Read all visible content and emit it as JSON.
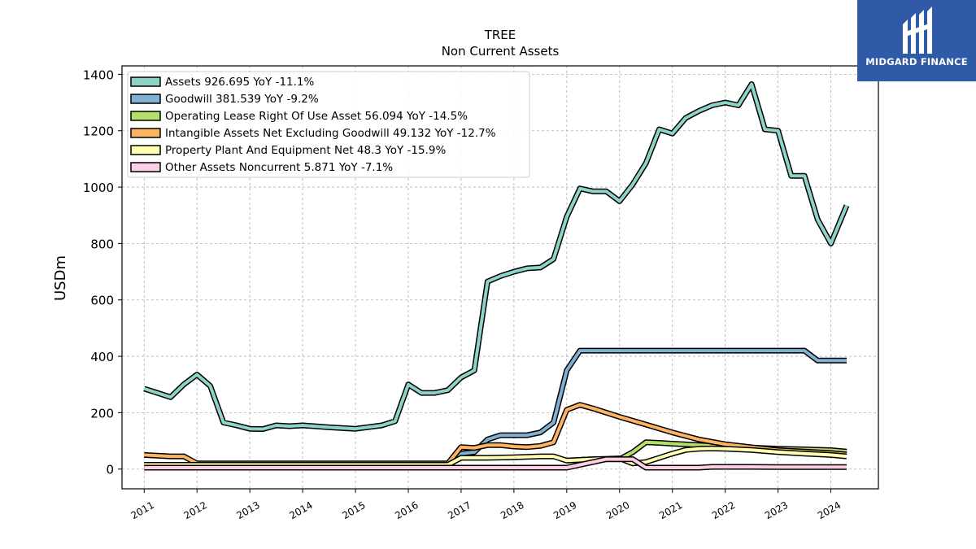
{
  "chart_data": {
    "type": "line",
    "title": "TREE",
    "subtitle": "Non Current  Assets",
    "xlabel": "",
    "ylabel": "USDm",
    "xlim": [
      2010.58,
      2024.9
    ],
    "ylim": [
      -70,
      1430
    ],
    "x_ticks": [
      "2011",
      "2012",
      "2013",
      "2014",
      "2015",
      "2016",
      "2017",
      "2018",
      "2019",
      "2020",
      "2021",
      "2022",
      "2023",
      "2024"
    ],
    "y_ticks": [
      0,
      200,
      400,
      600,
      800,
      1000,
      1200,
      1400
    ],
    "grid": true,
    "legend_position": "top-left",
    "series": [
      {
        "name": "Assets  926.695 YoY -11.1%",
        "color": "#8dd3c7",
        "points": [
          [
            2011.0,
            285
          ],
          [
            2011.25,
            270
          ],
          [
            2011.5,
            255
          ],
          [
            2011.75,
            300
          ],
          [
            2012.0,
            335
          ],
          [
            2012.25,
            295
          ],
          [
            2012.5,
            165
          ],
          [
            2012.75,
            155
          ],
          [
            2013.0,
            143
          ],
          [
            2013.25,
            142
          ],
          [
            2013.5,
            155
          ],
          [
            2013.75,
            152
          ],
          [
            2014.0,
            155
          ],
          [
            2014.5,
            148
          ],
          [
            2015.0,
            143
          ],
          [
            2015.5,
            155
          ],
          [
            2015.75,
            170
          ],
          [
            2016.0,
            300
          ],
          [
            2016.25,
            270
          ],
          [
            2016.5,
            270
          ],
          [
            2016.75,
            280
          ],
          [
            2017.0,
            325
          ],
          [
            2017.25,
            350
          ],
          [
            2017.5,
            665
          ],
          [
            2017.75,
            685
          ],
          [
            2018.0,
            700
          ],
          [
            2018.25,
            712
          ],
          [
            2018.5,
            715
          ],
          [
            2018.75,
            745
          ],
          [
            2019.0,
            895
          ],
          [
            2019.25,
            995
          ],
          [
            2019.5,
            985
          ],
          [
            2019.75,
            985
          ],
          [
            2020.0,
            950
          ],
          [
            2020.25,
            1010
          ],
          [
            2020.5,
            1085
          ],
          [
            2020.75,
            1205
          ],
          [
            2021.0,
            1190
          ],
          [
            2021.25,
            1245
          ],
          [
            2021.5,
            1270
          ],
          [
            2021.75,
            1290
          ],
          [
            2022.0,
            1300
          ],
          [
            2022.25,
            1290
          ],
          [
            2022.5,
            1365
          ],
          [
            2022.75,
            1205
          ],
          [
            2023.0,
            1200
          ],
          [
            2023.25,
            1040
          ],
          [
            2023.5,
            1040
          ],
          [
            2023.75,
            885
          ],
          [
            2024.0,
            800
          ],
          [
            2024.3,
            935
          ]
        ]
      },
      {
        "name": "Goodwill  381.539 YoY -9.2%",
        "color": "#80b1d3",
        "points": [
          [
            2011.0,
            15
          ],
          [
            2011.75,
            15
          ],
          [
            2012.0,
            15
          ],
          [
            2016.75,
            15
          ],
          [
            2017.0,
            55
          ],
          [
            2017.25,
            60
          ],
          [
            2017.5,
            105
          ],
          [
            2017.75,
            120
          ],
          [
            2018.0,
            120
          ],
          [
            2018.25,
            120
          ],
          [
            2018.5,
            130
          ],
          [
            2018.75,
            165
          ],
          [
            2019.0,
            350
          ],
          [
            2019.25,
            420
          ],
          [
            2019.5,
            420
          ],
          [
            2023.5,
            420
          ],
          [
            2023.75,
            385
          ],
          [
            2024.3,
            385
          ]
        ]
      },
      {
        "name": "Operating Lease Right Of Use Asset  56.094 YoY -14.5%",
        "color": "#b3de69",
        "points": [
          [
            2019.0,
            30
          ],
          [
            2019.5,
            35
          ],
          [
            2020.0,
            35
          ],
          [
            2020.25,
            60
          ],
          [
            2020.5,
            95
          ],
          [
            2020.75,
            93
          ],
          [
            2021.0,
            90
          ],
          [
            2021.5,
            85
          ],
          [
            2022.0,
            80
          ],
          [
            2022.5,
            76
          ],
          [
            2023.0,
            72
          ],
          [
            2023.5,
            70
          ],
          [
            2024.0,
            67
          ],
          [
            2024.3,
            62
          ]
        ]
      },
      {
        "name": "Intangible Assets Net Excluding Goodwill  49.132 YoY -12.7%",
        "color": "#fdb462",
        "points": [
          [
            2011.0,
            50
          ],
          [
            2011.5,
            45
          ],
          [
            2011.75,
            45
          ],
          [
            2012.0,
            20
          ],
          [
            2016.75,
            20
          ],
          [
            2017.0,
            78
          ],
          [
            2017.25,
            75
          ],
          [
            2017.5,
            85
          ],
          [
            2017.75,
            85
          ],
          [
            2018.0,
            80
          ],
          [
            2018.25,
            78
          ],
          [
            2018.5,
            82
          ],
          [
            2018.75,
            95
          ],
          [
            2019.0,
            210
          ],
          [
            2019.25,
            228
          ],
          [
            2019.5,
            215
          ],
          [
            2020.0,
            185
          ],
          [
            2020.5,
            158
          ],
          [
            2021.0,
            130
          ],
          [
            2021.5,
            105
          ],
          [
            2022.0,
            88
          ],
          [
            2022.5,
            77
          ],
          [
            2023.0,
            67
          ],
          [
            2023.5,
            62
          ],
          [
            2024.0,
            57
          ],
          [
            2024.3,
            52
          ]
        ]
      },
      {
        "name": "Property Plant And Equipment Net  48.3 YoY -15.9%",
        "color": "#ffffb3",
        "points": [
          [
            2011.0,
            15
          ],
          [
            2016.75,
            15
          ],
          [
            2017.0,
            40
          ],
          [
            2017.5,
            40
          ],
          [
            2018.0,
            42
          ],
          [
            2018.5,
            45
          ],
          [
            2018.75,
            45
          ],
          [
            2019.0,
            30
          ],
          [
            2019.5,
            35
          ],
          [
            2020.0,
            38
          ],
          [
            2020.25,
            20
          ],
          [
            2020.5,
            25
          ],
          [
            2020.75,
            40
          ],
          [
            2021.0,
            55
          ],
          [
            2021.25,
            68
          ],
          [
            2021.5,
            72
          ],
          [
            2021.75,
            73
          ],
          [
            2022.0,
            72
          ],
          [
            2022.5,
            68
          ],
          [
            2023.0,
            60
          ],
          [
            2023.5,
            55
          ],
          [
            2024.0,
            50
          ],
          [
            2024.3,
            45
          ]
        ]
      },
      {
        "name": "Other Assets Noncurrent  5.871 YoY -7.1%",
        "color": "#fccde5",
        "points": [
          [
            2011.0,
            5
          ],
          [
            2018.75,
            5
          ],
          [
            2019.0,
            5
          ],
          [
            2019.25,
            15
          ],
          [
            2019.5,
            25
          ],
          [
            2019.75,
            35
          ],
          [
            2020.0,
            35
          ],
          [
            2020.25,
            35
          ],
          [
            2020.5,
            5
          ],
          [
            2021.5,
            5
          ],
          [
            2021.75,
            8
          ],
          [
            2022.5,
            8
          ],
          [
            2023.0,
            7
          ],
          [
            2024.3,
            7
          ]
        ]
      }
    ]
  },
  "logo": {
    "text": "MIDGARD FINANCE",
    "background": "#2f5aa8"
  }
}
